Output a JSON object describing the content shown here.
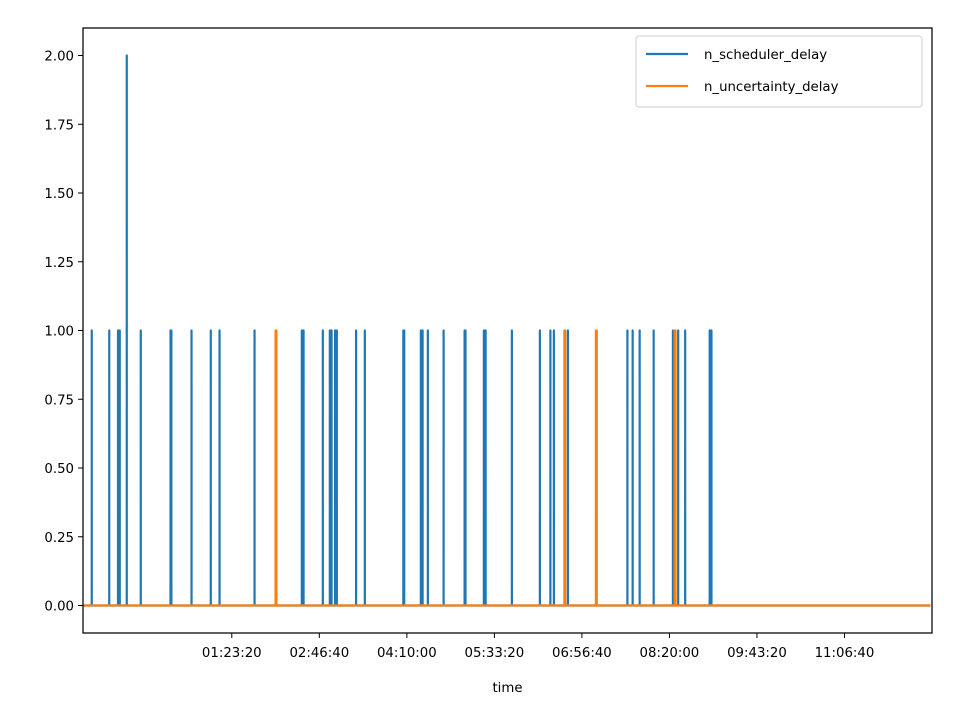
{
  "chart_data": {
    "type": "line",
    "title": "",
    "xlabel": "time",
    "ylabel": "",
    "x_unit": "seconds",
    "xlim": [
      -3500,
      45000
    ],
    "ylim": [
      -0.1,
      2.1
    ],
    "grid": false,
    "legend_position": "top-right",
    "x_ticks": [
      {
        "value": 5000,
        "label": "01:23:20"
      },
      {
        "value": 10000,
        "label": "02:46:40"
      },
      {
        "value": 15000,
        "label": "04:10:00"
      },
      {
        "value": 20000,
        "label": "05:33:20"
      },
      {
        "value": 25000,
        "label": "06:56:40"
      },
      {
        "value": 30000,
        "label": "08:20:00"
      },
      {
        "value": 35000,
        "label": "09:43:20"
      },
      {
        "value": 40000,
        "label": "11:06:40"
      }
    ],
    "y_ticks": [
      {
        "value": 0.0,
        "label": "0.00"
      },
      {
        "value": 0.25,
        "label": "0.25"
      },
      {
        "value": 0.5,
        "label": "0.50"
      },
      {
        "value": 0.75,
        "label": "0.75"
      },
      {
        "value": 1.0,
        "label": "1.00"
      },
      {
        "value": 1.25,
        "label": "1.25"
      },
      {
        "value": 1.5,
        "label": "1.50"
      },
      {
        "value": 1.75,
        "label": "1.75"
      },
      {
        "value": 2.0,
        "label": "2.00"
      }
    ],
    "x_range": [
      -3500,
      44900
    ],
    "series": [
      {
        "name": "n_scheduler_delay",
        "color": "#1f77b4",
        "spikes": [
          {
            "x": -3000,
            "y": 1
          },
          {
            "x": -2000,
            "y": 1
          },
          {
            "x": -1500,
            "y": 1
          },
          {
            "x": -1400,
            "y": 1
          },
          {
            "x": -1000,
            "y": 2
          },
          {
            "x": -200,
            "y": 1
          },
          {
            "x": 1500,
            "y": 1
          },
          {
            "x": 1550,
            "y": 1
          },
          {
            "x": 2700,
            "y": 1
          },
          {
            "x": 3800,
            "y": 1
          },
          {
            "x": 4300,
            "y": 1
          },
          {
            "x": 6300,
            "y": 1
          },
          {
            "x": 9000,
            "y": 1
          },
          {
            "x": 9100,
            "y": 1
          },
          {
            "x": 10200,
            "y": 1
          },
          {
            "x": 10600,
            "y": 1
          },
          {
            "x": 10700,
            "y": 1
          },
          {
            "x": 10900,
            "y": 1
          },
          {
            "x": 11000,
            "y": 1
          },
          {
            "x": 12100,
            "y": 1
          },
          {
            "x": 12600,
            "y": 1
          },
          {
            "x": 14800,
            "y": 1
          },
          {
            "x": 14850,
            "y": 1
          },
          {
            "x": 15800,
            "y": 1
          },
          {
            "x": 15900,
            "y": 1
          },
          {
            "x": 16200,
            "y": 1
          },
          {
            "x": 17100,
            "y": 1
          },
          {
            "x": 18300,
            "y": 1
          },
          {
            "x": 18350,
            "y": 1
          },
          {
            "x": 19400,
            "y": 1
          },
          {
            "x": 19500,
            "y": 1
          },
          {
            "x": 21000,
            "y": 1
          },
          {
            "x": 22600,
            "y": 1
          },
          {
            "x": 23200,
            "y": 1
          },
          {
            "x": 23400,
            "y": 1
          },
          {
            "x": 24200,
            "y": 1
          },
          {
            "x": 27600,
            "y": 1
          },
          {
            "x": 27900,
            "y": 1
          },
          {
            "x": 28300,
            "y": 1
          },
          {
            "x": 29100,
            "y": 1
          },
          {
            "x": 30200,
            "y": 1
          },
          {
            "x": 30500,
            "y": 1
          },
          {
            "x": 30900,
            "y": 1
          },
          {
            "x": 32300,
            "y": 1
          },
          {
            "x": 32400,
            "y": 1
          }
        ]
      },
      {
        "name": "n_uncertainty_delay",
        "color": "#ff7f0e",
        "spikes": [
          {
            "x": 7500,
            "y": 1
          },
          {
            "x": 7550,
            "y": 1
          },
          {
            "x": 24000,
            "y": 1
          },
          {
            "x": 24050,
            "y": 1
          },
          {
            "x": 25800,
            "y": 1
          },
          {
            "x": 25850,
            "y": 1
          },
          {
            "x": 30300,
            "y": 1
          },
          {
            "x": 30350,
            "y": 1
          }
        ]
      }
    ]
  }
}
